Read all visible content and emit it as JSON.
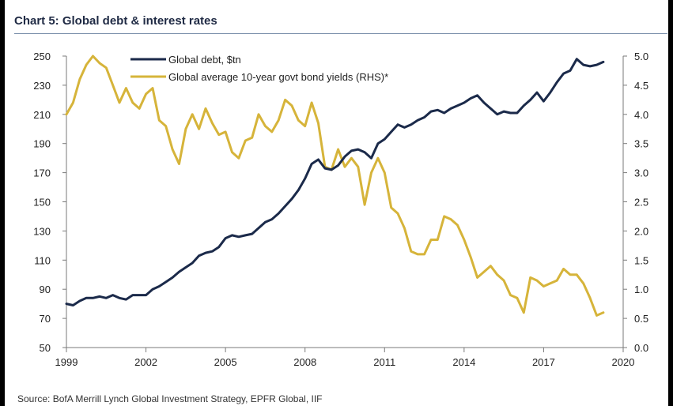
{
  "colors": {
    "debt": "#1b2a4a",
    "yields": "#d6b43a",
    "axis": "#7a7a7a"
  },
  "chart_data": {
    "type": "line",
    "title": "Chart 5: Global debt & interest rates",
    "source": "Source: BofA Merrill Lynch Global Investment Strategy, EPFR Global, IIF",
    "x_ticks": [
      "1999",
      "2002",
      "2005",
      "2008",
      "2011",
      "2014",
      "2017",
      "2020"
    ],
    "xlim": [
      1999,
      2020
    ],
    "y_left": {
      "lim": [
        50,
        250
      ],
      "ticks": [
        "250",
        "230",
        "210",
        "190",
        "170",
        "150",
        "130",
        "110",
        "90",
        "70",
        "50"
      ]
    },
    "y_right": {
      "lim": [
        0,
        5
      ],
      "ticks": [
        "5.0",
        "4.5",
        "4.0",
        "3.5",
        "3.0",
        "2.5",
        "2.0",
        "1.5",
        "1.0",
        "0.5",
        "0.0"
      ]
    },
    "legend_position": "top-left",
    "series": [
      {
        "name": "Global debt, $tn",
        "axis": "left",
        "x": [
          1999.0,
          1999.25,
          1999.5,
          1999.75,
          2000.0,
          2000.25,
          2000.5,
          2000.75,
          2001.0,
          2001.25,
          2001.5,
          2001.75,
          2002.0,
          2002.25,
          2002.5,
          2002.75,
          2003.0,
          2003.25,
          2003.5,
          2003.75,
          2004.0,
          2004.25,
          2004.5,
          2004.75,
          2005.0,
          2005.25,
          2005.5,
          2005.75,
          2006.0,
          2006.25,
          2006.5,
          2006.75,
          2007.0,
          2007.25,
          2007.5,
          2007.75,
          2008.0,
          2008.25,
          2008.5,
          2008.75,
          2009.0,
          2009.25,
          2009.5,
          2009.75,
          2010.0,
          2010.25,
          2010.5,
          2010.75,
          2011.0,
          2011.25,
          2011.5,
          2011.75,
          2012.0,
          2012.25,
          2012.5,
          2012.75,
          2013.0,
          2013.25,
          2013.5,
          2013.75,
          2014.0,
          2014.25,
          2014.5,
          2014.75,
          2015.0,
          2015.25,
          2015.5,
          2015.75,
          2016.0,
          2016.25,
          2016.5,
          2016.75,
          2017.0,
          2017.25,
          2017.5,
          2017.75,
          2018.0,
          2018.25,
          2018.5,
          2018.75,
          2019.0,
          2019.25
        ],
        "values": [
          80,
          79,
          82,
          84,
          84,
          85,
          84,
          86,
          84,
          83,
          86,
          86,
          86,
          90,
          92,
          95,
          98,
          102,
          105,
          108,
          113,
          115,
          116,
          119,
          125,
          127,
          126,
          127,
          128,
          132,
          136,
          138,
          142,
          147,
          152,
          158,
          166,
          176,
          179,
          173,
          172,
          175,
          181,
          185,
          186,
          184,
          180,
          190,
          193,
          198,
          203,
          201,
          203,
          206,
          208,
          212,
          213,
          211,
          214,
          216,
          218,
          221,
          223,
          218,
          214,
          210,
          212,
          211,
          211,
          216,
          220,
          225,
          219,
          225,
          232,
          238,
          240,
          248,
          244,
          243,
          244,
          246
        ]
      },
      {
        "name": "Global average 10-year govt bond yields (RHS)*",
        "axis": "right",
        "x": [
          1999.0,
          1999.25,
          1999.5,
          1999.75,
          2000.0,
          2000.25,
          2000.5,
          2000.75,
          2001.0,
          2001.25,
          2001.5,
          2001.75,
          2002.0,
          2002.25,
          2002.5,
          2002.75,
          2003.0,
          2003.25,
          2003.5,
          2003.75,
          2004.0,
          2004.25,
          2004.5,
          2004.75,
          2005.0,
          2005.25,
          2005.5,
          2005.75,
          2006.0,
          2006.25,
          2006.5,
          2006.75,
          2007.0,
          2007.25,
          2007.5,
          2007.75,
          2008.0,
          2008.25,
          2008.5,
          2008.75,
          2009.0,
          2009.25,
          2009.5,
          2009.75,
          2010.0,
          2010.25,
          2010.5,
          2010.75,
          2011.0,
          2011.25,
          2011.5,
          2011.75,
          2012.0,
          2012.25,
          2012.5,
          2012.75,
          2013.0,
          2013.25,
          2013.5,
          2013.75,
          2014.0,
          2014.25,
          2014.5,
          2014.75,
          2015.0,
          2015.25,
          2015.5,
          2015.75,
          2016.0,
          2016.25,
          2016.5,
          2016.75,
          2017.0,
          2017.25,
          2017.5,
          2017.75,
          2018.0,
          2018.25,
          2018.5,
          2018.75,
          2019.0,
          2019.25
        ],
        "values": [
          4.0,
          4.2,
          4.6,
          4.85,
          5.0,
          4.88,
          4.8,
          4.5,
          4.2,
          4.45,
          4.2,
          4.1,
          4.35,
          4.45,
          3.9,
          3.8,
          3.4,
          3.15,
          3.75,
          4.0,
          3.75,
          4.1,
          3.85,
          3.65,
          3.7,
          3.35,
          3.25,
          3.55,
          3.6,
          4.0,
          3.8,
          3.7,
          3.9,
          4.25,
          4.15,
          3.9,
          3.8,
          4.2,
          3.85,
          3.1,
          3.05,
          3.4,
          3.1,
          3.25,
          3.1,
          2.45,
          3.0,
          3.25,
          3.0,
          2.4,
          2.3,
          2.05,
          1.65,
          1.6,
          1.6,
          1.85,
          1.85,
          2.25,
          2.2,
          2.1,
          1.85,
          1.55,
          1.2,
          1.3,
          1.4,
          1.25,
          1.15,
          0.9,
          0.85,
          0.6,
          1.2,
          1.15,
          1.05,
          1.1,
          1.15,
          1.35,
          1.25,
          1.25,
          1.1,
          0.85,
          0.55,
          0.6
        ]
      }
    ]
  }
}
